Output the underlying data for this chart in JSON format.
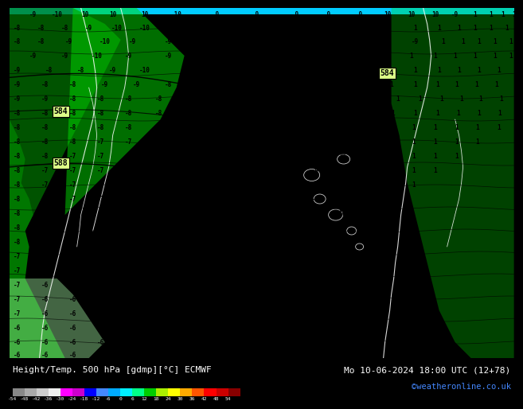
{
  "title_left": "Height/Temp. 500 hPa [gdmp][°C] ECMWF",
  "title_right": "Mo 10-06-2024 18:00 UTC (12+78)",
  "credit": "©weatheronline.co.uk",
  "colorbar_values": [
    -54,
    -48,
    -42,
    -36,
    -30,
    -24,
    -18,
    -12,
    -6,
    0,
    6,
    12,
    18,
    24,
    30,
    36,
    42,
    48,
    54
  ],
  "bg_green": "#00bb00",
  "dark_green": "#007700",
  "mid_green": "#009900",
  "light_green": "#00dd00",
  "top_strip_color": "#00ccff",
  "bottom_bar_bg": "#000000",
  "credit_color": "#4488ff",
  "cbar_colors": [
    "#888888",
    "#aaaaaa",
    "#cccccc",
    "#eeeeee",
    "#ff00ff",
    "#cc00cc",
    "#0000ff",
    "#4488ff",
    "#00aaff",
    "#00eeff",
    "#00ff88",
    "#00cc00",
    "#aaee00",
    "#ffff00",
    "#ffaa00",
    "#ff5500",
    "#ff0000",
    "#cc0000",
    "#880000"
  ]
}
